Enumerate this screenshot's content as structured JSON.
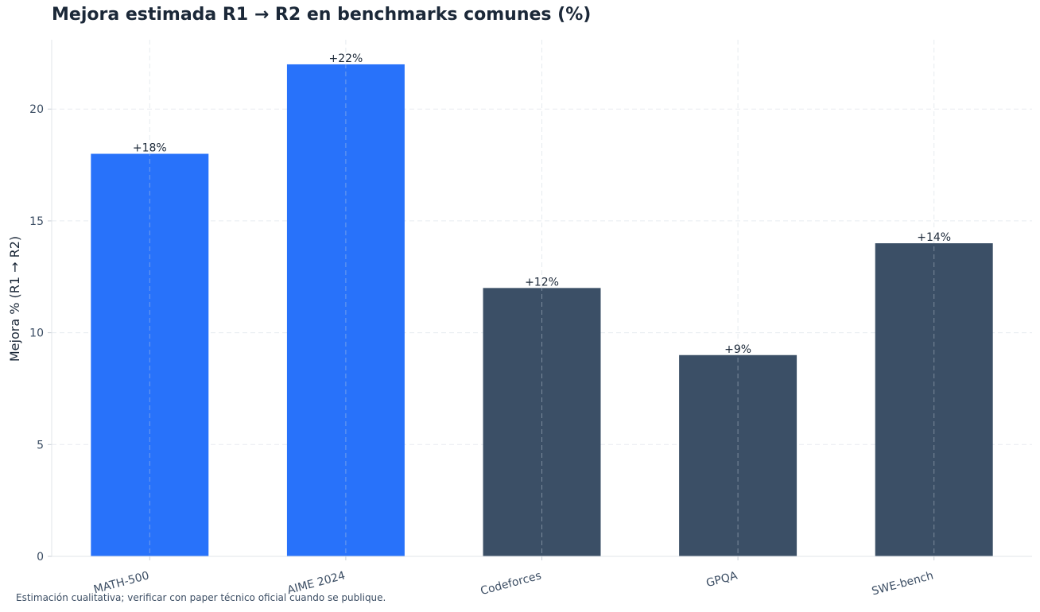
{
  "chart_data": {
    "type": "bar",
    "title": "Mejora estimada R1 → R2 en benchmarks comunes (%)",
    "xlabel": "",
    "ylabel": "Mejora % (R1 → R2)",
    "categories": [
      "MATH-500",
      "AIME 2024",
      "Codeforces",
      "GPQA",
      "SWE-bench"
    ],
    "values": [
      18,
      22,
      12,
      9,
      14
    ],
    "data_labels": [
      "+18%",
      "+22%",
      "+12%",
      "+9%",
      "+14%"
    ],
    "bar_colors": [
      "#2872fa",
      "#2872fa",
      "#3b4f66",
      "#3b4f66",
      "#3b4f66"
    ],
    "yticks": [
      0,
      5,
      10,
      15,
      20
    ],
    "ytick_labels": [
      "0",
      "5",
      "10",
      "15",
      "20"
    ],
    "ylim": [
      0,
      23.1
    ],
    "grid": true,
    "legend": "none"
  },
  "footnote": "Estimación cualitativa; verificar con paper técnico oficial cuando se publique."
}
